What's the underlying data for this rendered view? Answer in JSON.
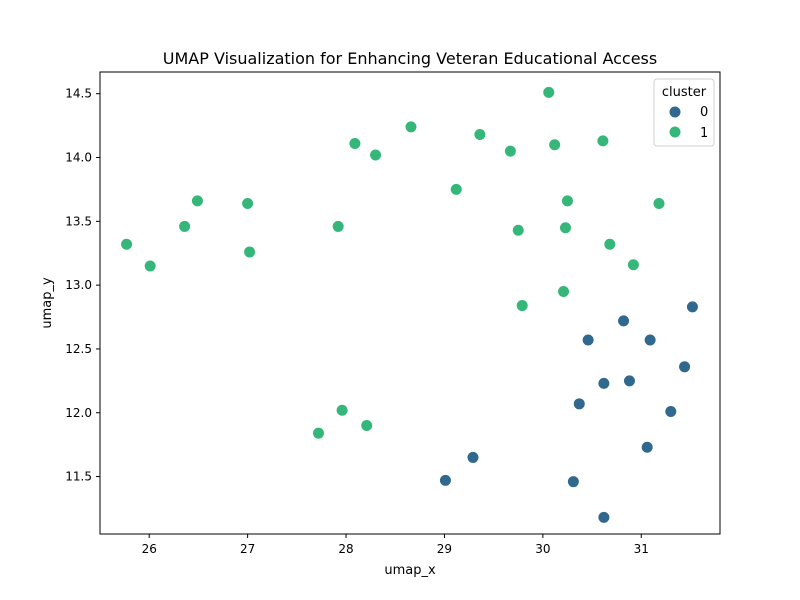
{
  "chart_data": {
    "type": "scatter",
    "title": "UMAP Visualization for Enhancing Veteran Educational Access",
    "xlabel": "umap_x",
    "ylabel": "umap_y",
    "xlim": [
      25.5,
      31.8
    ],
    "ylim": [
      11.05,
      14.67
    ],
    "xticks": [
      26,
      27,
      28,
      29,
      30,
      31
    ],
    "yticks": [
      11.5,
      12.0,
      12.5,
      13.0,
      13.5,
      14.0,
      14.5
    ],
    "xtick_labels": [
      "26",
      "27",
      "28",
      "29",
      "30",
      "31"
    ],
    "ytick_labels": [
      "11.5",
      "12.0",
      "12.5",
      "13.0",
      "13.5",
      "14.0",
      "14.5"
    ],
    "grid": false,
    "legend": {
      "title": "cluster",
      "placement": "top-right"
    },
    "series": [
      {
        "name": "0",
        "color": "#31688e",
        "points": [
          [
            31.52,
            12.83
          ],
          [
            30.82,
            12.72
          ],
          [
            31.09,
            12.57
          ],
          [
            30.46,
            12.57
          ],
          [
            31.44,
            12.36
          ],
          [
            30.62,
            12.23
          ],
          [
            30.88,
            12.25
          ],
          [
            30.37,
            12.07
          ],
          [
            31.3,
            12.01
          ],
          [
            31.06,
            11.73
          ],
          [
            29.29,
            11.65
          ],
          [
            29.01,
            11.47
          ],
          [
            30.31,
            11.46
          ],
          [
            30.62,
            11.18
          ]
        ]
      },
      {
        "name": "1",
        "color": "#35b779",
        "points": [
          [
            30.06,
            14.51
          ],
          [
            28.66,
            14.24
          ],
          [
            29.36,
            14.18
          ],
          [
            30.61,
            14.13
          ],
          [
            28.09,
            14.11
          ],
          [
            30.12,
            14.1
          ],
          [
            29.67,
            14.05
          ],
          [
            28.3,
            14.02
          ],
          [
            29.12,
            13.75
          ],
          [
            26.49,
            13.66
          ],
          [
            30.25,
            13.66
          ],
          [
            27.0,
            13.64
          ],
          [
            31.18,
            13.64
          ],
          [
            26.36,
            13.46
          ],
          [
            27.92,
            13.46
          ],
          [
            30.23,
            13.45
          ],
          [
            29.75,
            13.43
          ],
          [
            25.77,
            13.32
          ],
          [
            30.68,
            13.32
          ],
          [
            27.02,
            13.26
          ],
          [
            30.92,
            13.16
          ],
          [
            26.01,
            13.15
          ],
          [
            30.21,
            12.95
          ],
          [
            29.79,
            12.84
          ],
          [
            27.96,
            12.02
          ],
          [
            28.21,
            11.9
          ],
          [
            27.72,
            11.84
          ]
        ]
      }
    ]
  }
}
